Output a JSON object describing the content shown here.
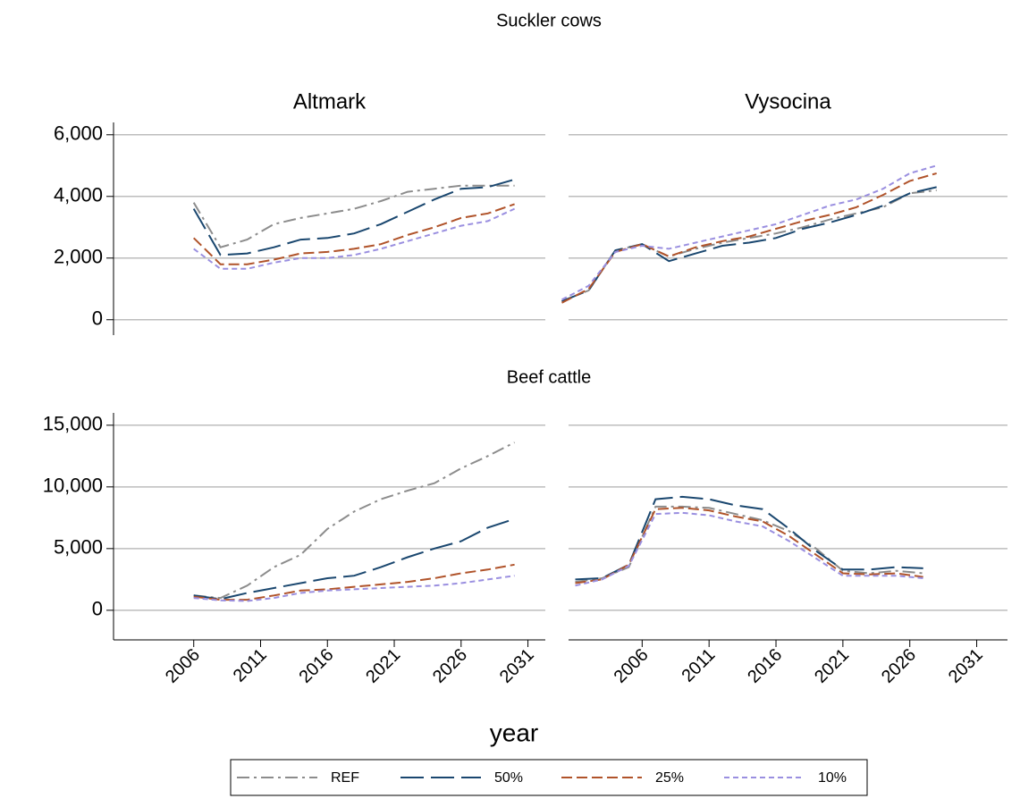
{
  "title": "Suckler cows",
  "row2_title": "Beef cattle",
  "x_label": "year",
  "chart_data": [
    {
      "type": "line",
      "title": "Altmark",
      "xlim": [
        2000,
        2032.3
      ],
      "ylim": [
        -500,
        6400
      ],
      "yticks": [
        0,
        {
          "value": 2000,
          "label": "2,000"
        },
        {
          "value": 4000,
          "label": "4,000"
        },
        {
          "value": 6000,
          "label": "6,000"
        }
      ],
      "grid": true,
      "x": [
        2006,
        2008,
        2010,
        2012,
        2014,
        2016,
        2018,
        2020,
        2022,
        2024,
        2026,
        2028,
        2030
      ],
      "series": [
        {
          "name": "REF",
          "color": "#8c8c8c",
          "values": [
            3800,
            2350,
            2600,
            3100,
            3300,
            3450,
            3600,
            3850,
            4150,
            4250,
            4350,
            4350,
            4350
          ]
        },
        {
          "name": "50%",
          "color": "#1a476f",
          "values": [
            3600,
            2100,
            2150,
            2350,
            2600,
            2650,
            2800,
            3100,
            3500,
            3900,
            4250,
            4300,
            4550
          ]
        },
        {
          "name": "25%",
          "color": "#b0532a",
          "values": [
            2650,
            1800,
            1800,
            1950,
            2150,
            2200,
            2300,
            2450,
            2750,
            3000,
            3300,
            3450,
            3750
          ]
        },
        {
          "name": "10%",
          "color": "#9a8fe0",
          "values": [
            2300,
            1650,
            1650,
            1850,
            2000,
            2000,
            2100,
            2300,
            2550,
            2800,
            3050,
            3200,
            3600
          ]
        }
      ]
    },
    {
      "type": "line",
      "title": "Vysocina",
      "xlim": [
        2000.5,
        2033.3
      ],
      "ylim": [
        -500,
        6400
      ],
      "grid": true,
      "x": [
        2000,
        2002,
        2004,
        2006,
        2008,
        2010,
        2012,
        2014,
        2016,
        2018,
        2020,
        2022,
        2024,
        2026,
        2028
      ],
      "series": [
        {
          "name": "REF",
          "color": "#8c8c8c",
          "values": [
            600,
            950,
            2250,
            2450,
            2050,
            2300,
            2500,
            2650,
            2800,
            3000,
            3250,
            3450,
            3650,
            4100,
            4200
          ]
        },
        {
          "name": "50%",
          "color": "#1a476f",
          "values": [
            600,
            950,
            2250,
            2450,
            1900,
            2150,
            2400,
            2500,
            2650,
            2950,
            3150,
            3400,
            3700,
            4100,
            4300
          ]
        },
        {
          "name": "25%",
          "color": "#b0532a",
          "values": [
            550,
            1000,
            2200,
            2450,
            2050,
            2350,
            2550,
            2700,
            2950,
            3200,
            3400,
            3650,
            4050,
            4500,
            4750
          ]
        },
        {
          "name": "10%",
          "color": "#9a8fe0",
          "values": [
            650,
            1100,
            2200,
            2400,
            2300,
            2500,
            2700,
            2900,
            3100,
            3400,
            3700,
            3900,
            4250,
            4750,
            5000
          ]
        }
      ]
    },
    {
      "type": "line",
      "xlim": [
        2000,
        2032.3
      ],
      "ylim": [
        -2400,
        16000
      ],
      "yticks": [
        0,
        {
          "value": 5000,
          "label": "5,000"
        },
        {
          "value": 10000,
          "label": "10,000"
        },
        {
          "value": 15000,
          "label": "15,000"
        }
      ],
      "grid": true,
      "xticks": [
        2006,
        2011,
        2016,
        2021,
        2026,
        2031
      ],
      "x": [
        2006,
        2008,
        2010,
        2012,
        2014,
        2016,
        2018,
        2020,
        2022,
        2024,
        2026,
        2028,
        2030
      ],
      "series": [
        {
          "name": "REF",
          "color": "#8c8c8c",
          "values": [
            1200,
            1000,
            2000,
            3500,
            4500,
            6600,
            8000,
            9000,
            9700,
            10300,
            11500,
            12500,
            13600
          ]
        },
        {
          "name": "50%",
          "color": "#1a476f",
          "values": [
            1200,
            900,
            1400,
            1800,
            2200,
            2600,
            2800,
            3500,
            4300,
            5000,
            5600,
            6700,
            7400
          ]
        },
        {
          "name": "25%",
          "color": "#b0532a",
          "values": [
            1100,
            850,
            850,
            1200,
            1600,
            1700,
            1900,
            2100,
            2300,
            2600,
            3000,
            3300,
            3700
          ]
        },
        {
          "name": "10%",
          "color": "#9a8fe0",
          "values": [
            1000,
            800,
            750,
            1000,
            1400,
            1600,
            1700,
            1800,
            1900,
            2000,
            2200,
            2500,
            2800
          ]
        }
      ]
    },
    {
      "type": "line",
      "xlim": [
        2000.5,
        2033.3
      ],
      "ylim": [
        -2400,
        16000
      ],
      "grid": true,
      "xticks": [
        2006,
        2011,
        2016,
        2021,
        2026,
        2031
      ],
      "x": [
        2001,
        2003,
        2005,
        2007,
        2009,
        2011,
        2013,
        2015,
        2017,
        2019,
        2021,
        2023,
        2025,
        2027
      ],
      "series": [
        {
          "name": "REF",
          "color": "#8c8c8c",
          "values": [
            2300,
            2600,
            3500,
            8400,
            8400,
            8300,
            7800,
            7300,
            6400,
            5000,
            3200,
            3000,
            3200,
            3000
          ]
        },
        {
          "name": "50%",
          "color": "#1a476f",
          "values": [
            2500,
            2600,
            3700,
            9000,
            9200,
            9000,
            8500,
            8200,
            6600,
            4800,
            3300,
            3300,
            3500,
            3400
          ]
        },
        {
          "name": "25%",
          "color": "#b0532a",
          "values": [
            2200,
            2500,
            3700,
            8200,
            8300,
            8100,
            7600,
            7200,
            6000,
            4500,
            3000,
            2900,
            3000,
            2700
          ]
        },
        {
          "name": "10%",
          "color": "#9a8fe0",
          "values": [
            2000,
            2500,
            3600,
            7800,
            7900,
            7700,
            7200,
            6800,
            5600,
            4200,
            2800,
            2800,
            2800,
            2600
          ]
        }
      ]
    }
  ]
}
